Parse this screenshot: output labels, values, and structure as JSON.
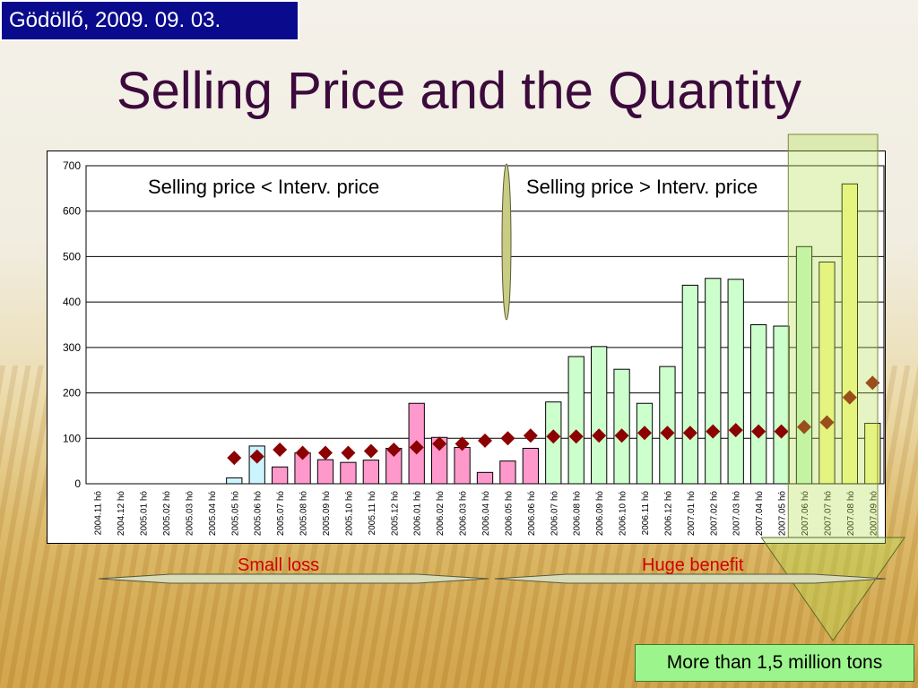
{
  "header": {
    "date": "Gödöllő, 2009. 09. 03.",
    "title": "Selling Price and the Quantity"
  },
  "annotations": {
    "left_region": "Selling price < Interv. price",
    "right_region": "Selling price > Interv. price",
    "small_loss": "Small loss",
    "huge_benefit": "Huge benefit",
    "callout": "More than 1,5 million tons"
  },
  "colors": {
    "bar_blue": "#ccf4ff",
    "bar_pink": "#ff99cc",
    "bar_green": "#ccffcc",
    "bar_yellow": "#ffff99",
    "marker": "#8b0000",
    "title": "#3c0a3c",
    "date_box": "#0a0a8c",
    "callout_bg": "#9cf58c",
    "highlight": "#b4e050"
  },
  "chart_data": {
    "type": "bar",
    "title": "",
    "xlabel": "",
    "ylabel": "",
    "ylim": [
      0,
      700
    ],
    "yticks": [
      0,
      100,
      200,
      300,
      400,
      500,
      600,
      700
    ],
    "grid": true,
    "categories": [
      "2004.11 hó",
      "2004.12 hó",
      "2005.01 hó",
      "2005.02 hó",
      "2005.03 hó",
      "2005.04 hó",
      "2005.05 hó",
      "2005.06 hó",
      "2005.07 hó",
      "2005.08 hó",
      "2005.09 hó",
      "2005.10 hó",
      "2005.11 hó",
      "2005.12 hó",
      "2006.01 hó",
      "2006.02 hó",
      "2006.03 hó",
      "2006.04 hó",
      "2006.05 hó",
      "2006.06 hó",
      "2006.07 hó",
      "2006.08 hó",
      "2006.09 hó",
      "2006.10 hó",
      "2006.11 hó",
      "2006.12 hó",
      "2007.01 hó",
      "2007.02 hó",
      "2007.03 hó",
      "2007.04 hó",
      "2007.05 hó",
      "2007.06 hó",
      "2007.07 hó",
      "2007.08 hó",
      "2007.09 hó"
    ],
    "series": [
      {
        "kind": "bar",
        "values": [
          0,
          0,
          0,
          0,
          0,
          0,
          13,
          83,
          37,
          68,
          53,
          47,
          52,
          78,
          177,
          102,
          80,
          25,
          50,
          78,
          180,
          280,
          302,
          252,
          177,
          258,
          437,
          452,
          450,
          350,
          347,
          522,
          488,
          660,
          133
        ],
        "colors": [
          "#ccf4ff",
          "#ccf4ff",
          "#ccf4ff",
          "#ccf4ff",
          "#ccf4ff",
          "#ccf4ff",
          "#ccf4ff",
          "#ccf4ff",
          "#ff99cc",
          "#ff99cc",
          "#ff99cc",
          "#ff99cc",
          "#ff99cc",
          "#ff99cc",
          "#ff99cc",
          "#ff99cc",
          "#ff99cc",
          "#ff99cc",
          "#ff99cc",
          "#ff99cc",
          "#ccffcc",
          "#ccffcc",
          "#ccffcc",
          "#ccffcc",
          "#ccffcc",
          "#ccffcc",
          "#ccffcc",
          "#ccffcc",
          "#ccffcc",
          "#ccffcc",
          "#ccffcc",
          "#ccffcc",
          "#ffff99",
          "#ffff99",
          "#ffff99"
        ]
      },
      {
        "kind": "marker",
        "values": [
          null,
          null,
          null,
          null,
          null,
          null,
          57,
          60,
          75,
          68,
          68,
          68,
          72,
          75,
          80,
          88,
          88,
          95,
          100,
          106,
          104,
          104,
          106,
          106,
          112,
          112,
          112,
          115,
          118,
          115,
          115,
          125,
          135,
          190,
          222
        ]
      }
    ]
  }
}
